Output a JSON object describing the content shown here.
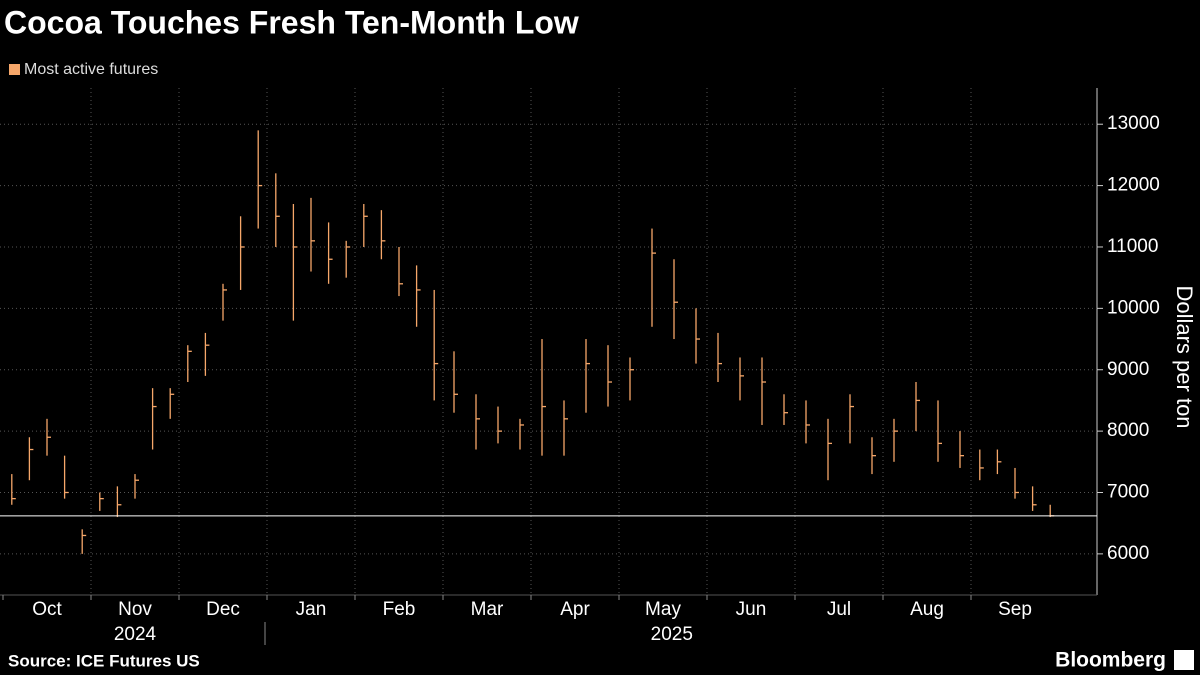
{
  "chart_data": {
    "type": "ohlc",
    "title": "Cocoa Touches Fresh Ten-Month Low",
    "y_label": "Dollars per ton",
    "source": "Source: ICE Futures US",
    "brand": "Bloomberg",
    "categories": [
      "Oct",
      "Nov",
      "Dec",
      "Jan",
      "Feb",
      "Mar",
      "Apr",
      "May",
      "Jun",
      "Jul",
      "Aug",
      "Sep"
    ],
    "years": [
      "2024",
      "2025"
    ],
    "ylim": [
      5330,
      13590
    ],
    "yticks": [
      6000,
      7000,
      8000,
      9000,
      10000,
      11000,
      12000,
      13000
    ],
    "grid": true,
    "ref_line": 6620,
    "series": [
      {
        "name": "Most active futures",
        "color": "#f6a76a",
        "high": [
          [
            7300,
            7900,
            8200,
            7600,
            6400
          ],
          [
            7000,
            7100,
            7300,
            8700,
            8700
          ],
          [
            9400,
            9600,
            10400,
            11500,
            12900
          ],
          [
            12200,
            11700,
            11800,
            11400,
            11100
          ],
          [
            11700,
            11600,
            11000,
            10700,
            10300
          ],
          [
            9300,
            8600,
            8400,
            8200
          ],
          [
            9500,
            8500,
            9500,
            9400
          ],
          [
            9200,
            11300,
            10800,
            10000
          ],
          [
            9600,
            9200,
            9200,
            8600
          ],
          [
            8500,
            8200,
            8600,
            7900
          ],
          [
            8200,
            8800,
            8500,
            8000
          ],
          [
            7700,
            7700,
            7400,
            7100,
            6800
          ]
        ],
        "low": [
          [
            6800,
            7200,
            7600,
            6900,
            6000
          ],
          [
            6700,
            6600,
            6900,
            7700,
            8200
          ],
          [
            8800,
            8900,
            9800,
            10300,
            11300
          ],
          [
            11000,
            9800,
            10600,
            10400,
            10500
          ],
          [
            11000,
            10800,
            10200,
            9700,
            8500
          ],
          [
            8300,
            7700,
            7800,
            7700
          ],
          [
            7600,
            7600,
            8300,
            8400
          ],
          [
            8500,
            9700,
            9500,
            9100
          ],
          [
            8800,
            8500,
            8100,
            8100
          ],
          [
            7800,
            7200,
            7800,
            7300
          ],
          [
            7500,
            8000,
            7500,
            7400
          ],
          [
            7200,
            7300,
            6900,
            6700,
            6600
          ]
        ],
        "close": [
          [
            6900,
            7700,
            7900,
            7000,
            6300
          ],
          [
            6900,
            6800,
            7200,
            8400,
            8600
          ],
          [
            9300,
            9400,
            10300,
            11000,
            12000
          ],
          [
            11500,
            11000,
            11100,
            10800,
            11000
          ],
          [
            11500,
            11100,
            10400,
            10300,
            9100
          ],
          [
            8600,
            8200,
            8000,
            8100
          ],
          [
            8400,
            8200,
            9100,
            8800
          ],
          [
            9000,
            10900,
            10100,
            9500
          ],
          [
            9100,
            8900,
            8800,
            8300
          ],
          [
            8100,
            7800,
            8400,
            7600
          ],
          [
            8000,
            8500,
            7800,
            7600
          ],
          [
            7400,
            7500,
            7000,
            6800,
            6620
          ]
        ]
      }
    ]
  }
}
